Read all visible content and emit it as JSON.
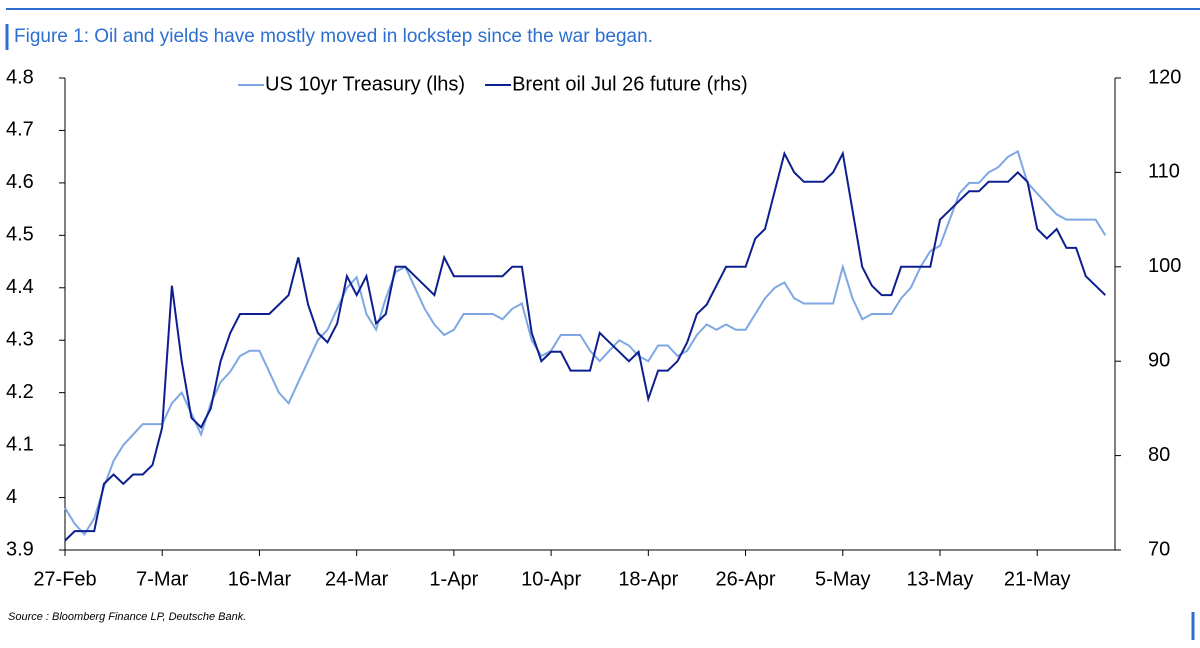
{
  "chart_data": {
    "type": "line",
    "title": "Figure 1: Oil and yields have mostly moved in lockstep since the war began.",
    "source": "Source : Bloomberg Finance LP, Deutsche Bank.",
    "categories": [
      "27-Feb",
      null,
      null,
      null,
      null,
      null,
      null,
      null,
      null,
      null,
      "7-Mar",
      null,
      null,
      null,
      null,
      null,
      null,
      null,
      null,
      null,
      "16-Mar",
      null,
      null,
      null,
      null,
      null,
      null,
      null,
      null,
      null,
      "24-Mar",
      null,
      null,
      null,
      null,
      null,
      null,
      null,
      null,
      null,
      "1-Apr",
      null,
      null,
      null,
      null,
      null,
      null,
      null,
      null,
      null,
      "10-Apr",
      null,
      null,
      null,
      null,
      null,
      null,
      null,
      null,
      null,
      "18-Apr",
      null,
      null,
      null,
      null,
      null,
      null,
      null,
      null,
      null,
      "26-Apr",
      null,
      null,
      null,
      null,
      null,
      null,
      null,
      null,
      null,
      "5-May",
      null,
      null,
      null,
      null,
      null,
      null,
      null,
      null,
      null,
      "13-May",
      null,
      null,
      null,
      null,
      null,
      null,
      null,
      null,
      null,
      "21-May",
      null,
      null,
      null,
      null,
      null,
      null,
      null
    ],
    "series": [
      {
        "name": "US 10yr Treasury (lhs)",
        "color": "#7fa7e3",
        "axis": "y",
        "values": [
          3.98,
          3.95,
          3.93,
          3.96,
          4.02,
          4.07,
          4.1,
          4.12,
          4.14,
          4.14,
          4.14,
          4.18,
          4.2,
          4.16,
          4.12,
          4.18,
          4.22,
          4.24,
          4.27,
          4.28,
          4.28,
          4.24,
          4.2,
          4.18,
          4.22,
          4.26,
          4.3,
          4.32,
          4.36,
          4.4,
          4.42,
          4.35,
          4.32,
          4.38,
          4.43,
          4.44,
          4.4,
          4.36,
          4.33,
          4.31,
          4.32,
          4.35,
          4.35,
          4.35,
          4.35,
          4.34,
          4.36,
          4.37,
          4.3,
          4.27,
          4.28,
          4.31,
          4.31,
          4.31,
          4.28,
          4.26,
          4.28,
          4.3,
          4.29,
          4.27,
          4.26,
          4.29,
          4.29,
          4.27,
          4.28,
          4.31,
          4.33,
          4.32,
          4.33,
          4.32,
          4.32,
          4.35,
          4.38,
          4.4,
          4.41,
          4.38,
          4.37,
          4.37,
          4.37,
          4.37,
          4.44,
          4.38,
          4.34,
          4.35,
          4.35,
          4.35,
          4.38,
          4.4,
          4.44,
          4.47,
          4.48,
          4.53,
          4.58,
          4.6,
          4.6,
          4.62,
          4.63,
          4.65,
          4.66,
          4.6,
          4.58,
          4.56,
          4.54,
          4.53,
          4.53,
          4.53,
          4.53,
          4.5
        ]
      },
      {
        "name": "Brent oil Jul 26 future (rhs)",
        "color": "#0d1f8f",
        "axis": "y2",
        "values": [
          71,
          72,
          72,
          72,
          77,
          78,
          77,
          78,
          78,
          79,
          83,
          98,
          90,
          84,
          83,
          85,
          90,
          93,
          95,
          95,
          95,
          95,
          96,
          97,
          101,
          96,
          93,
          92,
          94,
          99,
          97,
          99,
          94,
          95,
          100,
          100,
          99,
          98,
          97,
          101,
          99,
          99,
          99,
          99,
          99,
          99,
          100,
          100,
          93,
          90,
          91,
          91,
          89,
          89,
          89,
          93,
          92,
          91,
          90,
          91,
          86,
          89,
          89,
          90,
          92,
          95,
          96,
          98,
          100,
          100,
          100,
          103,
          104,
          108,
          112,
          110,
          109,
          109,
          109,
          110,
          112,
          106,
          100,
          98,
          97,
          97,
          100,
          100,
          100,
          100,
          105,
          106,
          107,
          108,
          108,
          109,
          109,
          109,
          110,
          109,
          104,
          103,
          104,
          102,
          102,
          99,
          98,
          97
        ]
      }
    ],
    "ylim": [
      3.9,
      4.8
    ],
    "yticks": [
      3.9,
      4,
      4.1,
      4.2,
      4.3,
      4.4,
      4.5,
      4.6,
      4.7,
      4.8
    ],
    "y2lim": [
      70,
      120
    ],
    "y2ticks": [
      70,
      80,
      90,
      100,
      110,
      120
    ],
    "grid": false,
    "legend": "top"
  }
}
